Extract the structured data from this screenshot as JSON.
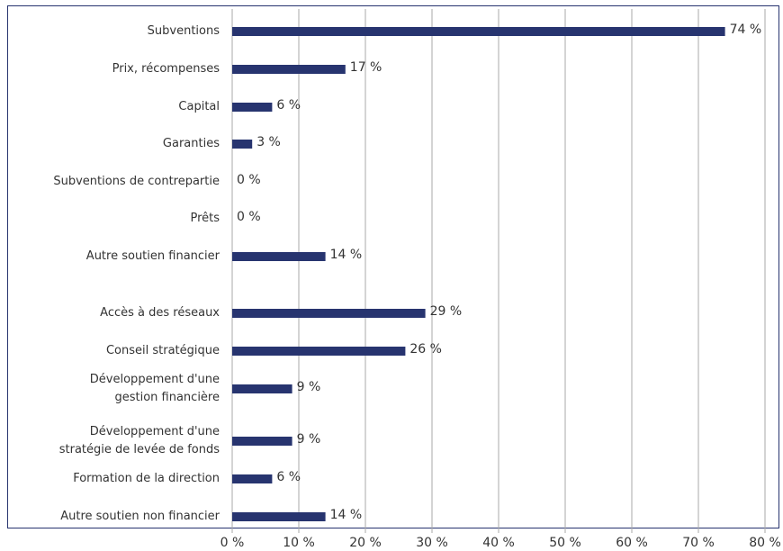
{
  "chart_data": {
    "type": "bar",
    "orientation": "horizontal",
    "categories": [
      "Subventions",
      "Prix, récompenses",
      "Capital",
      "Garanties",
      "Subventions de contrepartie",
      "Prêts",
      "Autre soutien financier",
      "Accès à des réseaux",
      "Conseil stratégique",
      "Développement d'une\ngestion financière",
      "Développement d'une\nstratégie de levée de fonds",
      "Formation de la direction",
      "Autre soutien non financier"
    ],
    "values": [
      74,
      17,
      6,
      3,
      0,
      0,
      14,
      29,
      26,
      9,
      9,
      6,
      14
    ],
    "value_labels": [
      "74 %",
      "17 %",
      "6 %",
      "3 %",
      "0 %",
      "0 %",
      "14 %",
      "29 %",
      "26 %",
      "9 %",
      "9 %",
      "6 %",
      "14 %"
    ],
    "color": "#27346f",
    "xlim": [
      0,
      80
    ],
    "xticks": [
      {
        "value": 0,
        "label": "0 %"
      },
      {
        "value": 10,
        "label": "10 %"
      },
      {
        "value": 20,
        "label": "20 %"
      },
      {
        "value": 30,
        "label": "30 %"
      },
      {
        "value": 40,
        "label": "40 %"
      },
      {
        "value": 50,
        "label": "50 %"
      },
      {
        "value": 60,
        "label": "60 %"
      },
      {
        "value": 70,
        "label": "70 %"
      },
      {
        "value": 80,
        "label": "80 %"
      }
    ],
    "grid": true
  }
}
